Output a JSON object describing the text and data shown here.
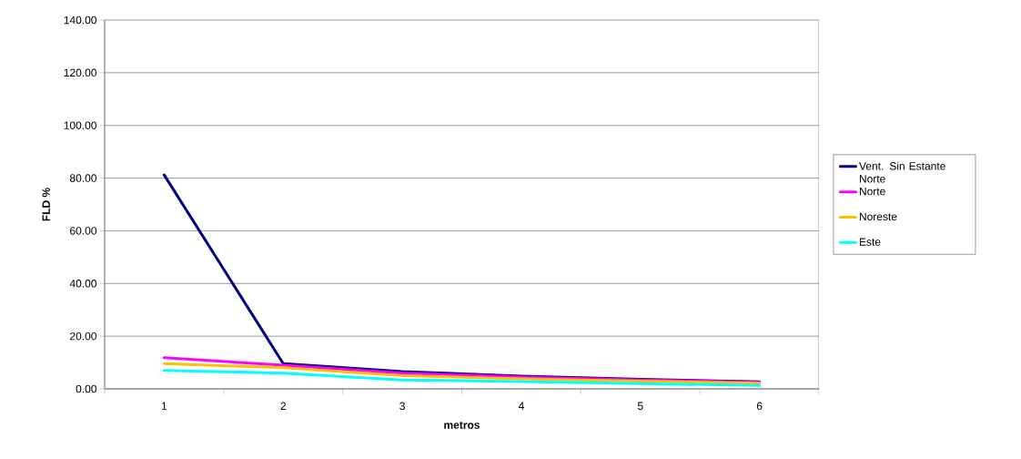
{
  "chart_data": {
    "type": "line",
    "xlabel": "metros",
    "ylabel": "FLD %",
    "categories": [
      "1",
      "2",
      "3",
      "4",
      "5",
      "6"
    ],
    "series": [
      {
        "name": "Vent. Sin Estante Norte",
        "color": "#000080",
        "values": [
          81.2,
          9.6,
          6.6,
          4.8,
          3.6,
          2.7
        ]
      },
      {
        "name": "Norte",
        "color": "#ff00ff",
        "values": [
          11.8,
          9.0,
          6.0,
          4.5,
          3.4,
          2.5
        ]
      },
      {
        "name": "Noreste",
        "color": "#ffc000",
        "values": [
          9.6,
          8.0,
          5.0,
          3.8,
          2.9,
          2.2
        ]
      },
      {
        "name": "Este",
        "color": "#00ffff",
        "values": [
          7.0,
          6.0,
          3.4,
          2.8,
          2.0,
          1.3
        ]
      }
    ],
    "ylim": [
      0,
      140
    ],
    "yticks": [
      {
        "value": 0,
        "label": "0.00"
      },
      {
        "value": 20,
        "label": "20.00"
      },
      {
        "value": 40,
        "label": "40.00"
      },
      {
        "value": 60,
        "label": "60.00"
      },
      {
        "value": 80,
        "label": "80.00"
      },
      {
        "value": 100,
        "label": "100.00"
      },
      {
        "value": 120,
        "label": "120.00"
      },
      {
        "value": 140,
        "label": "140.00"
      }
    ],
    "grid": "y",
    "legend": "right",
    "marker": "none",
    "line_style": "solid"
  }
}
